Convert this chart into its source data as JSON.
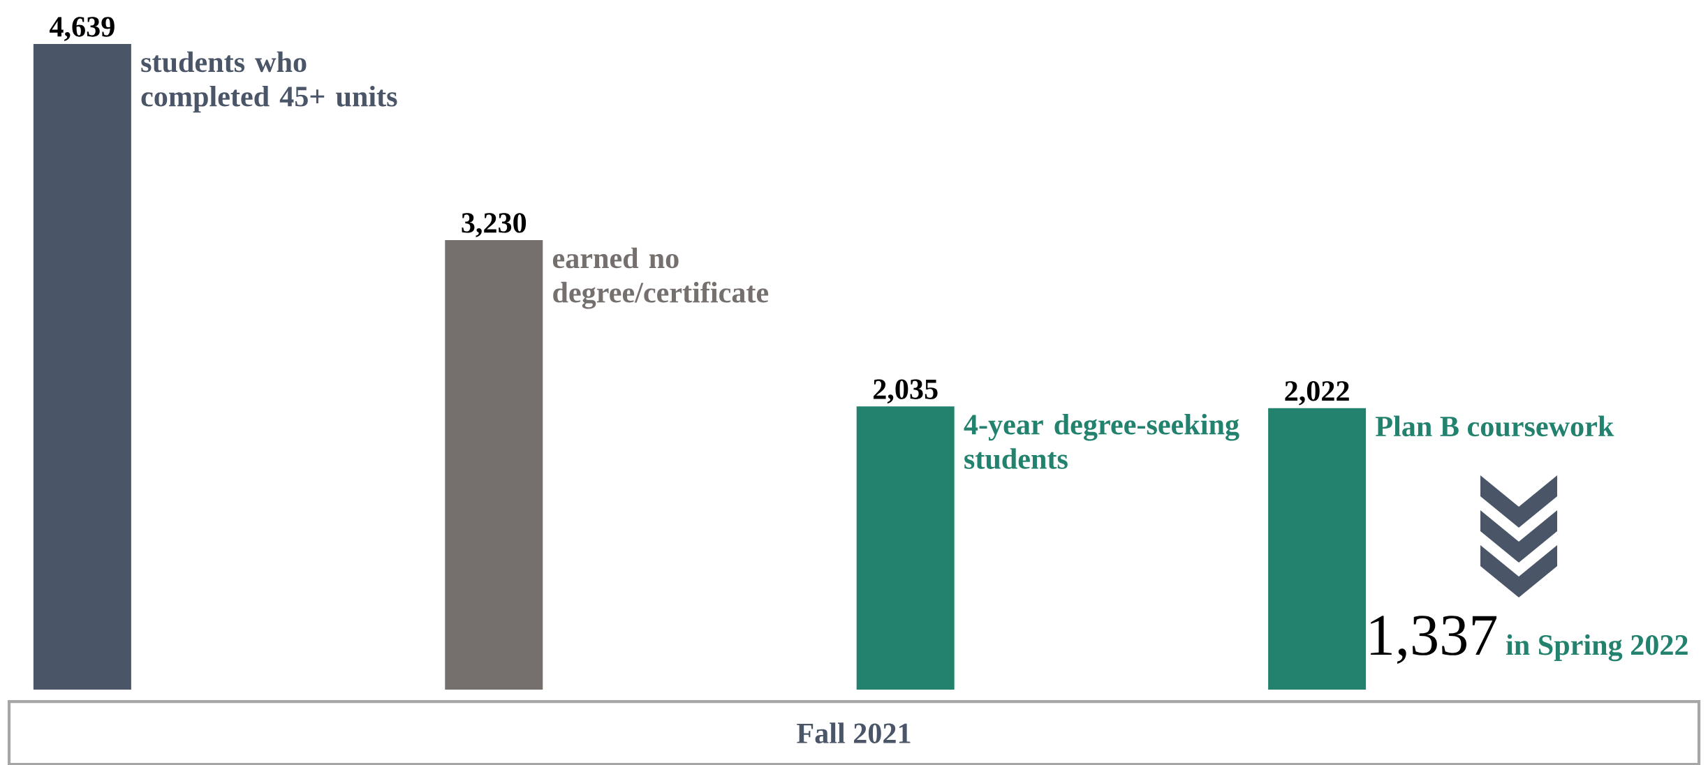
{
  "chart_data": {
    "type": "bar",
    "xlabel": "Fall 2021",
    "categories": [
      null,
      null,
      null,
      null
    ],
    "values": [
      4639,
      3230,
      2035,
      2022
    ],
    "colors": [
      "#4a5668",
      "#75706e",
      "#22826e",
      "#22826e"
    ],
    "value_labels": [
      "4,639",
      "3,230",
      "2,035",
      "2,022"
    ],
    "annotations": [
      "students who completed 45+ units",
      "earned no degree/certificate",
      "4-year degree-seeking students",
      "Plan B coursework",
      "1,337",
      "in Spring 2022"
    ]
  }
}
